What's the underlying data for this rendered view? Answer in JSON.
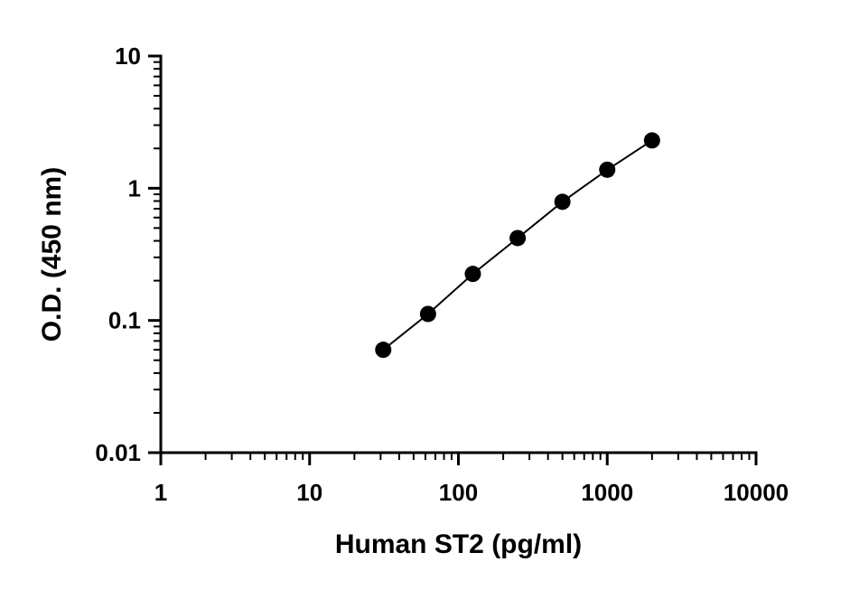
{
  "chart_data": {
    "type": "scatter",
    "title": "",
    "xlabel": "Human ST2 (pg/ml)",
    "ylabel": "O.D. (450 nm)",
    "xscale": "log",
    "yscale": "log",
    "xlim": [
      1,
      10000
    ],
    "ylim": [
      0.01,
      10
    ],
    "x_ticks": [
      "1",
      "10",
      "100",
      "1000",
      "10000"
    ],
    "y_ticks": [
      "0.01",
      "0.1",
      "1",
      "10"
    ],
    "grid": false,
    "legend": "none",
    "series": [
      {
        "x": [
          31.25,
          62.5,
          125,
          250,
          500,
          1000,
          2000
        ],
        "y": [
          0.06,
          0.112,
          0.225,
          0.42,
          0.79,
          1.38,
          2.3
        ],
        "connected": true,
        "marker": "circle",
        "color": "#000000"
      }
    ]
  }
}
